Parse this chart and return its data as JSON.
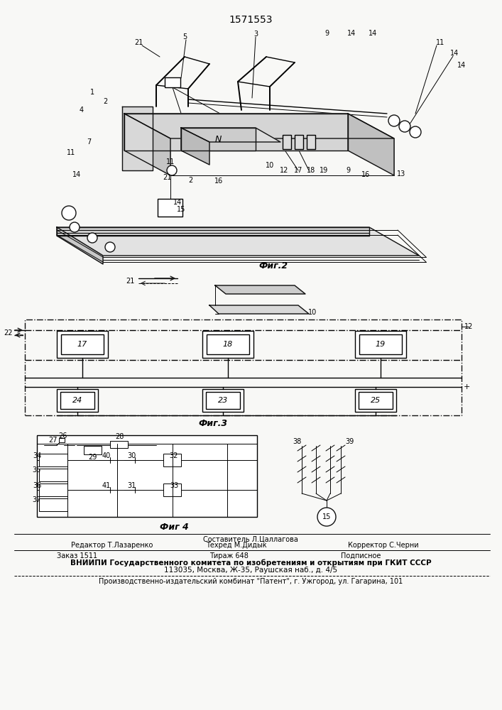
{
  "title": "1571553",
  "bg_color": "#f8f8f6",
  "fig2_label": "Фиг.2",
  "fig3_label": "Фиг.3",
  "fig4_label": "Фиг 4",
  "footer_composer": "Составитель Л.Цаллагова",
  "footer_col1": "Редактор Т.Лазаренко",
  "footer_col2": "Техред М.Дидык",
  "footer_col3": "Корректор С.Черни",
  "footer_order": "Заказ 1511",
  "footer_print": "Тираж 648",
  "footer_sign": "Подписное",
  "footer_org": "ВНИИПИ Государственного комитета по изобретениям и открытиям при ГКИТ СССР",
  "footer_addr": "113035, Москва, Ж-35, Раушская наб., д. 4/5",
  "footer_plant": "Производственно-издательский комбинат \"Патент\", г. Ужгород, ул. Гагарина, 101"
}
